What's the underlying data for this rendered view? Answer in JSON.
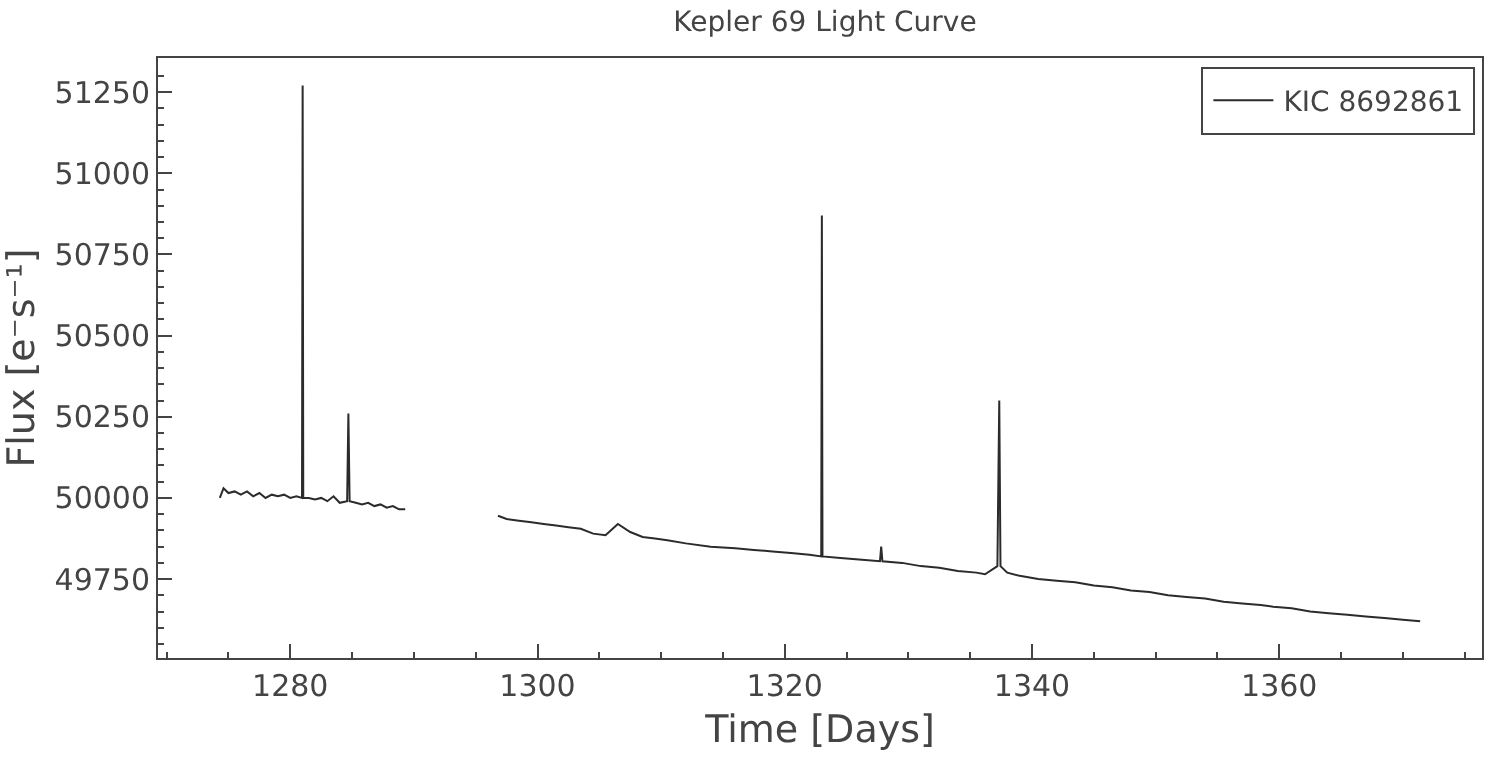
{
  "chart_data": {
    "type": "line",
    "title": "Kepler 69 Light Curve",
    "xlabel": "Time [Days]",
    "ylabel": "Flux [e⁻s⁻¹]",
    "series": [
      {
        "name": "KIC 8692861",
        "color": "#2b2b2b",
        "x": [
          1274.3,
          1274.6,
          1275.0,
          1275.5,
          1276.0,
          1276.5,
          1277.0,
          1277.5,
          1278.0,
          1278.5,
          1279.0,
          1279.5,
          1280.0,
          1280.5,
          1280.95,
          1281.0,
          1281.05,
          1281.5,
          1282.0,
          1282.5,
          1283.0,
          1283.5,
          1284.0,
          1284.6,
          1284.7,
          1284.8,
          1285.3,
          1285.8,
          1286.3,
          1286.8,
          1287.3,
          1287.8,
          1288.3,
          1288.8,
          1289.3,
          1293.0,
          1296.8,
          1297.5,
          1298.5,
          1299.5,
          1300.5,
          1301.5,
          1302.5,
          1303.5,
          1304.5,
          1305.5,
          1306.5,
          1307.5,
          1308.5,
          1309.5,
          1310.5,
          1312.0,
          1314.0,
          1316.0,
          1317.5,
          1319.0,
          1320.5,
          1322.0,
          1322.95,
          1323.0,
          1323.05,
          1324.5,
          1326.0,
          1327.7,
          1327.8,
          1327.9,
          1329.5,
          1331.0,
          1332.5,
          1334.0,
          1335.5,
          1336.2,
          1337.2,
          1337.35,
          1337.45,
          1338.0,
          1339.0,
          1340.5,
          1342.0,
          1343.5,
          1345.0,
          1346.5,
          1348.0,
          1349.5,
          1351.0,
          1352.5,
          1354.0,
          1355.5,
          1357.0,
          1358.5,
          1359.5,
          1361.0,
          1362.5,
          1364.0,
          1365.5,
          1367.0,
          1368.5,
          1370.0,
          1371.4
        ],
        "values": [
          50000,
          50030,
          50015,
          50020,
          50010,
          50020,
          50005,
          50015,
          50000,
          50010,
          50005,
          50010,
          50000,
          50005,
          50000,
          51270,
          50000,
          50000,
          49995,
          50000,
          49990,
          50005,
          49985,
          49990,
          50260,
          49990,
          49985,
          49980,
          49985,
          49975,
          49980,
          49970,
          49975,
          49965,
          49965,
          null,
          49945,
          49935,
          49930,
          49925,
          49920,
          49915,
          49910,
          49905,
          49890,
          49885,
          49920,
          49895,
          49880,
          49875,
          49870,
          49860,
          49850,
          49845,
          49840,
          49835,
          49830,
          49825,
          49820,
          50870,
          49820,
          49815,
          49810,
          49805,
          49850,
          49805,
          49800,
          49790,
          49785,
          49775,
          49770,
          49765,
          49790,
          50300,
          49790,
          49770,
          49760,
          49750,
          49745,
          49740,
          49730,
          49725,
          49715,
          49710,
          49700,
          49695,
          49690,
          49680,
          49675,
          49670,
          49665,
          49660,
          49650,
          49645,
          49640,
          49635,
          49630,
          49625,
          49620
        ]
      }
    ],
    "xlim": [
      1269.3,
      1376.4
    ],
    "ylim": [
      49507,
      51355
    ],
    "xticks": [
      {
        "value": 1270,
        "label": null
      },
      {
        "value": 1275,
        "label": null
      },
      1280,
      {
        "value": 1285,
        "label": null
      },
      {
        "value": 1290,
        "label": null
      },
      {
        "value": 1295,
        "label": null
      },
      1300,
      {
        "value": 1305,
        "label": null
      },
      {
        "value": 1310,
        "label": null
      },
      {
        "value": 1315,
        "label": null
      },
      1320,
      {
        "value": 1325,
        "label": null
      },
      {
        "value": 1330,
        "label": null
      },
      {
        "value": 1335,
        "label": null
      },
      1340,
      {
        "value": 1345,
        "label": null
      },
      {
        "value": 1350,
        "label": null
      },
      {
        "value": 1355,
        "label": null
      },
      1360,
      {
        "value": 1365,
        "label": null
      },
      {
        "value": 1370,
        "label": null
      },
      {
        "value": 1375,
        "label": null
      }
    ],
    "yticks": [
      {
        "value": 49550,
        "label": null
      },
      {
        "value": 49600,
        "label": null
      },
      {
        "value": 49650,
        "label": null
      },
      {
        "value": 49700,
        "label": null
      },
      49750,
      {
        "value": 49800,
        "label": null
      },
      {
        "value": 49850,
        "label": null
      },
      {
        "value": 49900,
        "label": null
      },
      {
        "value": 49950,
        "label": null
      },
      50000,
      {
        "value": 50050,
        "label": null
      },
      {
        "value": 50100,
        "label": null
      },
      {
        "value": 50150,
        "label": null
      },
      {
        "value": 50200,
        "label": null
      },
      50250,
      {
        "value": 50300,
        "label": null
      },
      {
        "value": 50350,
        "label": null
      },
      {
        "value": 50400,
        "label": null
      },
      {
        "value": 50450,
        "label": null
      },
      50500,
      {
        "value": 50550,
        "label": null
      },
      {
        "value": 50600,
        "label": null
      },
      {
        "value": 50650,
        "label": null
      },
      {
        "value": 50700,
        "label": null
      },
      50750,
      {
        "value": 50800,
        "label": null
      },
      {
        "value": 50850,
        "label": null
      },
      {
        "value": 50900,
        "label": null
      },
      {
        "value": 50950,
        "label": null
      },
      51000,
      {
        "value": 51050,
        "label": null
      },
      {
        "value": 51100,
        "label": null
      },
      {
        "value": 51150,
        "label": null
      },
      {
        "value": 51200,
        "label": null
      },
      51250,
      {
        "value": 51300,
        "label": null
      }
    ],
    "grid": false,
    "legend": "top right",
    "marker": "none",
    "line_style": "solid"
  }
}
